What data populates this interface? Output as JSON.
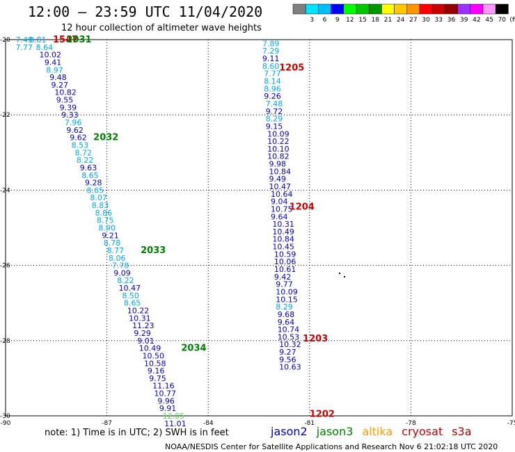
{
  "title": "12:00 – 23:59 UTC 11/04/2020",
  "subtitle": "12 hour collection of altimeter wave heights",
  "colorbar": {
    "unit": "(ft)",
    "bins": [
      {
        "color": "#7f7f7f",
        "label": ""
      },
      {
        "color": "#00e5ff",
        "label": "3"
      },
      {
        "color": "#00bfff",
        "label": "6"
      },
      {
        "color": "#0000ff",
        "label": "9"
      },
      {
        "color": "#00ff00",
        "label": "12"
      },
      {
        "color": "#00c800",
        "label": "15"
      },
      {
        "color": "#009600",
        "label": "18"
      },
      {
        "color": "#ffff00",
        "label": "21"
      },
      {
        "color": "#ffc800",
        "label": "24"
      },
      {
        "color": "#ff9600",
        "label": "27"
      },
      {
        "color": "#ff0000",
        "label": "30"
      },
      {
        "color": "#c80000",
        "label": "33"
      },
      {
        "color": "#960000",
        "label": "36"
      },
      {
        "color": "#9b30ff",
        "label": "39"
      },
      {
        "color": "#ff00ff",
        "label": "42"
      },
      {
        "color": "#ff96ff",
        "label": "45"
      },
      {
        "color": "#000000",
        "label": "70"
      }
    ]
  },
  "colors": {
    "jason2": "#0000cd",
    "jason3": "#008000",
    "altika": "#ff9900",
    "cryosat": "#cc0000",
    "s3a": "#aa0000",
    "cyan": "#00aaee",
    "lightgreen": "#55dd55"
  },
  "chart_data": {
    "type": "scatter",
    "xlim": [
      -90,
      -75
    ],
    "ylim": [
      -30,
      -20
    ],
    "xticks": [
      "-90",
      "-87",
      "-84",
      "-81",
      "-78",
      "-75"
    ],
    "yticks": [
      "-20",
      "-22",
      "-24",
      "-26",
      "-28",
      "-30"
    ],
    "grid": true,
    "legend": [
      "jason2",
      "jason3",
      "altika",
      "cryosat",
      "s3a"
    ],
    "passes": [
      {
        "label": "1547",
        "lon": -88.6,
        "lat": -20.0,
        "color": "#cc0000"
      },
      {
        "label": "2031",
        "lon": -88.2,
        "lat": -20.0,
        "color": "#008000"
      },
      {
        "label": "2032",
        "lon": -87.4,
        "lat": -22.6,
        "color": "#008000"
      },
      {
        "label": "2033",
        "lon": -86.0,
        "lat": -25.6,
        "color": "#008000"
      },
      {
        "label": "2034",
        "lon": -84.8,
        "lat": -28.2,
        "color": "#008000"
      },
      {
        "label": "1205",
        "lon": -81.9,
        "lat": -20.75,
        "color": "#cc0000"
      },
      {
        "label": "1204",
        "lon": -81.6,
        "lat": -24.45,
        "color": "#cc0000"
      },
      {
        "label": "1203",
        "lon": -81.2,
        "lat": -27.95,
        "color": "#cc0000"
      },
      {
        "label": "1202",
        "lon": -81.0,
        "lat": -29.95,
        "color": "#cc0000"
      }
    ],
    "tracks": [
      {
        "satellite": "jason3",
        "points": [
          {
            "v": "7.49",
            "lon": -89.7,
            "lat": -20.0,
            "c": "cyan"
          },
          {
            "v": "8.81",
            "lon": -89.3,
            "lat": -20.0,
            "c": "cyan"
          },
          {
            "v": "7.77",
            "lon": -89.7,
            "lat": -20.2,
            "c": "cyan"
          },
          {
            "v": "8.64",
            "lon": -89.1,
            "lat": -20.2,
            "c": "cyan"
          },
          {
            "v": "10.02",
            "lon": -89.0,
            "lat": -20.4,
            "c": "blue"
          },
          {
            "v": "9.41",
            "lon": -88.85,
            "lat": -20.6,
            "c": "blue"
          },
          {
            "v": "8.97",
            "lon": -88.8,
            "lat": -20.8,
            "c": "cyan"
          },
          {
            "v": "9.48",
            "lon": -88.7,
            "lat": -21.0,
            "c": "blue"
          },
          {
            "v": "9.27",
            "lon": -88.65,
            "lat": -21.2,
            "c": "blue"
          },
          {
            "v": "10.82",
            "lon": -88.55,
            "lat": -21.4,
            "c": "blue"
          },
          {
            "v": "9.55",
            "lon": -88.5,
            "lat": -21.6,
            "c": "blue"
          },
          {
            "v": "9.39",
            "lon": -88.4,
            "lat": -21.8,
            "c": "blue"
          },
          {
            "v": "9.33",
            "lon": -88.35,
            "lat": -22.0,
            "c": "blue"
          },
          {
            "v": "7.96",
            "lon": -88.25,
            "lat": -22.2,
            "c": "cyan"
          },
          {
            "v": "9.62",
            "lon": -88.2,
            "lat": -22.4,
            "c": "blue"
          },
          {
            "v": "9.62",
            "lon": -88.1,
            "lat": -22.6,
            "c": "blue"
          },
          {
            "v": "8.53",
            "lon": -88.05,
            "lat": -22.8,
            "c": "cyan"
          },
          {
            "v": "8.72",
            "lon": -87.95,
            "lat": -23.0,
            "c": "cyan"
          },
          {
            "v": "8.22",
            "lon": -87.9,
            "lat": -23.2,
            "c": "cyan"
          },
          {
            "v": "9.63",
            "lon": -87.8,
            "lat": -23.4,
            "c": "blue"
          },
          {
            "v": "8.65",
            "lon": -87.75,
            "lat": -23.6,
            "c": "cyan"
          },
          {
            "v": "9.28",
            "lon": -87.65,
            "lat": -23.8,
            "c": "blue"
          },
          {
            "v": "8.65",
            "lon": -87.6,
            "lat": -24.0,
            "c": "cyan"
          },
          {
            "v": "8.07",
            "lon": -87.5,
            "lat": -24.2,
            "c": "cyan"
          },
          {
            "v": "8.83",
            "lon": -87.45,
            "lat": -24.4,
            "c": "cyan"
          },
          {
            "v": "8.86",
            "lon": -87.35,
            "lat": -24.6,
            "c": "cyan"
          },
          {
            "v": "8.75",
            "lon": -87.3,
            "lat": -24.8,
            "c": "cyan"
          },
          {
            "v": "8.90",
            "lon": -87.25,
            "lat": -25.0,
            "c": "cyan"
          },
          {
            "v": "9.21",
            "lon": -87.15,
            "lat": -25.2,
            "c": "blue"
          },
          {
            "v": "8.78",
            "lon": -87.1,
            "lat": -25.4,
            "c": "cyan"
          },
          {
            "v": "8.77",
            "lon": -87.0,
            "lat": -25.6,
            "c": "cyan"
          },
          {
            "v": "8.06",
            "lon": -86.95,
            "lat": -25.8,
            "c": "cyan"
          },
          {
            "v": "7.78",
            "lon": -86.85,
            "lat": -26.0,
            "c": "cyan"
          },
          {
            "v": "9.09",
            "lon": -86.8,
            "lat": -26.2,
            "c": "blue"
          },
          {
            "v": "8.22",
            "lon": -86.7,
            "lat": -26.4,
            "c": "cyan"
          },
          {
            "v": "10.47",
            "lon": -86.65,
            "lat": -26.6,
            "c": "blue"
          },
          {
            "v": "8.50",
            "lon": -86.55,
            "lat": -26.8,
            "c": "cyan"
          },
          {
            "v": "8.65",
            "lon": -86.5,
            "lat": -27.0,
            "c": "cyan"
          },
          {
            "v": "10.22",
            "lon": -86.4,
            "lat": -27.2,
            "c": "blue"
          },
          {
            "v": "10.31",
            "lon": -86.35,
            "lat": -27.4,
            "c": "blue"
          },
          {
            "v": "11.23",
            "lon": -86.25,
            "lat": -27.6,
            "c": "blue"
          },
          {
            "v": "9.29",
            "lon": -86.2,
            "lat": -27.8,
            "c": "blue"
          },
          {
            "v": "9.01",
            "lon": -86.1,
            "lat": -28.0,
            "c": "blue"
          },
          {
            "v": "10.49",
            "lon": -86.05,
            "lat": -28.2,
            "c": "blue"
          },
          {
            "v": "10.50",
            "lon": -85.95,
            "lat": -28.4,
            "c": "blue"
          },
          {
            "v": "10.58",
            "lon": -85.9,
            "lat": -28.6,
            "c": "blue"
          },
          {
            "v": "9.16",
            "lon": -85.8,
            "lat": -28.8,
            "c": "blue"
          },
          {
            "v": "9.75",
            "lon": -85.75,
            "lat": -29.0,
            "c": "blue"
          },
          {
            "v": "11.16",
            "lon": -85.65,
            "lat": -29.2,
            "c": "blue"
          },
          {
            "v": "10.77",
            "lon": -85.6,
            "lat": -29.4,
            "c": "blue"
          },
          {
            "v": "9.96",
            "lon": -85.5,
            "lat": -29.6,
            "c": "blue"
          },
          {
            "v": "9.91",
            "lon": -85.45,
            "lat": -29.8,
            "c": "blue"
          },
          {
            "v": "12.05",
            "lon": -85.35,
            "lat": -30.0,
            "c": "lightgreen"
          },
          {
            "v": "11.01",
            "lon": -85.3,
            "lat": -30.2,
            "c": "blue"
          }
        ]
      },
      {
        "satellite": "cryosat",
        "points": [
          {
            "v": "7.89",
            "lon": -82.4,
            "lat": -20.1,
            "c": "cyan"
          },
          {
            "v": "7.29",
            "lon": -82.4,
            "lat": -20.3,
            "c": "cyan"
          },
          {
            "v": "9.11",
            "lon": -82.4,
            "lat": -20.5,
            "c": "blue"
          },
          {
            "v": "8.60",
            "lon": -82.4,
            "lat": -20.7,
            "c": "cyan"
          },
          {
            "v": "7.77",
            "lon": -82.35,
            "lat": -20.9,
            "c": "cyan"
          },
          {
            "v": "8.14",
            "lon": -82.35,
            "lat": -21.1,
            "c": "cyan"
          },
          {
            "v": "8.96",
            "lon": -82.35,
            "lat": -21.3,
            "c": "cyan"
          },
          {
            "v": "9.26",
            "lon": -82.35,
            "lat": -21.5,
            "c": "blue"
          },
          {
            "v": "7.48",
            "lon": -82.3,
            "lat": -21.7,
            "c": "cyan"
          },
          {
            "v": "9.72",
            "lon": -82.3,
            "lat": -21.9,
            "c": "blue"
          },
          {
            "v": "8.29",
            "lon": -82.3,
            "lat": -22.1,
            "c": "cyan"
          },
          {
            "v": "9.15",
            "lon": -82.3,
            "lat": -22.3,
            "c": "blue"
          },
          {
            "v": "10.09",
            "lon": -82.25,
            "lat": -22.5,
            "c": "blue"
          },
          {
            "v": "10.22",
            "lon": -82.25,
            "lat": -22.7,
            "c": "blue"
          },
          {
            "v": "10.10",
            "lon": -82.25,
            "lat": -22.9,
            "c": "blue"
          },
          {
            "v": "10.82",
            "lon": -82.25,
            "lat": -23.1,
            "c": "blue"
          },
          {
            "v": "9.98",
            "lon": -82.2,
            "lat": -23.3,
            "c": "blue"
          },
          {
            "v": "10.84",
            "lon": -82.2,
            "lat": -23.5,
            "c": "blue"
          },
          {
            "v": "9.49",
            "lon": -82.2,
            "lat": -23.7,
            "c": "blue"
          },
          {
            "v": "10.47",
            "lon": -82.2,
            "lat": -23.9,
            "c": "blue"
          },
          {
            "v": "10.64",
            "lon": -82.15,
            "lat": -24.1,
            "c": "blue"
          },
          {
            "v": "9.04",
            "lon": -82.15,
            "lat": -24.3,
            "c": "blue"
          },
          {
            "v": "10.75",
            "lon": -82.15,
            "lat": -24.5,
            "c": "blue"
          },
          {
            "v": "9.64",
            "lon": -82.15,
            "lat": -24.7,
            "c": "blue"
          },
          {
            "v": "10.31",
            "lon": -82.1,
            "lat": -24.9,
            "c": "blue"
          },
          {
            "v": "10.49",
            "lon": -82.1,
            "lat": -25.1,
            "c": "blue"
          },
          {
            "v": "10.84",
            "lon": -82.1,
            "lat": -25.3,
            "c": "blue"
          },
          {
            "v": "10.45",
            "lon": -82.1,
            "lat": -25.5,
            "c": "blue"
          },
          {
            "v": "10.59",
            "lon": -82.05,
            "lat": -25.7,
            "c": "blue"
          },
          {
            "v": "10.06",
            "lon": -82.05,
            "lat": -25.9,
            "c": "blue"
          },
          {
            "v": "10.61",
            "lon": -82.05,
            "lat": -26.1,
            "c": "blue"
          },
          {
            "v": "9.42",
            "lon": -82.05,
            "lat": -26.3,
            "c": "blue"
          },
          {
            "v": "9.77",
            "lon": -82.0,
            "lat": -26.5,
            "c": "blue"
          },
          {
            "v": "10.09",
            "lon": -82.0,
            "lat": -26.7,
            "c": "blue"
          },
          {
            "v": "10.15",
            "lon": -82.0,
            "lat": -26.9,
            "c": "blue"
          },
          {
            "v": "8.29",
            "lon": -82.0,
            "lat": -27.1,
            "c": "cyan"
          },
          {
            "v": "9.68",
            "lon": -81.95,
            "lat": -27.3,
            "c": "blue"
          },
          {
            "v": "9.64",
            "lon": -81.95,
            "lat": -27.5,
            "c": "blue"
          },
          {
            "v": "10.74",
            "lon": -81.95,
            "lat": -27.7,
            "c": "blue"
          },
          {
            "v": "10.53",
            "lon": -81.95,
            "lat": -27.9,
            "c": "blue"
          },
          {
            "v": "10.32",
            "lon": -81.9,
            "lat": -28.1,
            "c": "blue"
          },
          {
            "v": "9.27",
            "lon": -81.9,
            "lat": -28.3,
            "c": "blue"
          },
          {
            "v": "9.56",
            "lon": -81.9,
            "lat": -28.5,
            "c": "blue"
          },
          {
            "v": "10.63",
            "lon": -81.9,
            "lat": -28.7,
            "c": "blue"
          }
        ]
      }
    ]
  },
  "note": "note:  1) Time is in UTC;  2) SWH is in feet",
  "satellites": [
    {
      "name": "jason2",
      "color": "#0000cd"
    },
    {
      "name": "jason3",
      "color": "#008000"
    },
    {
      "name": "altika",
      "color": "#ff9900"
    },
    {
      "name": "cryosat",
      "color": "#cc0000"
    },
    {
      "name": "s3a",
      "color": "#aa0000"
    }
  ],
  "footer": "NOAA/NESDIS Center for Satellite Applications and Research     Nov  6 21:02:18 UTC 2020"
}
